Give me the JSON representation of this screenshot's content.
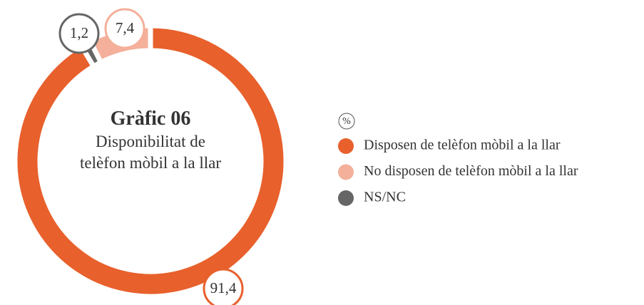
{
  "chart_data": {
    "type": "pie",
    "title": "Gràfic 06",
    "subtitle": "Disponibilitat de telèfon mòbil a la llar",
    "unit": "%",
    "categories": [
      "Disposen de telèfon mòbil a la llar",
      "No disposen de telèfon mòbil a la llar",
      "NS/NC"
    ],
    "values": [
      91.4,
      7.4,
      1.2
    ],
    "value_labels": [
      "91,4",
      "7,4",
      "1,2"
    ],
    "colors": [
      "#e8602c",
      "#f4b09a",
      "#666666"
    ]
  }
}
